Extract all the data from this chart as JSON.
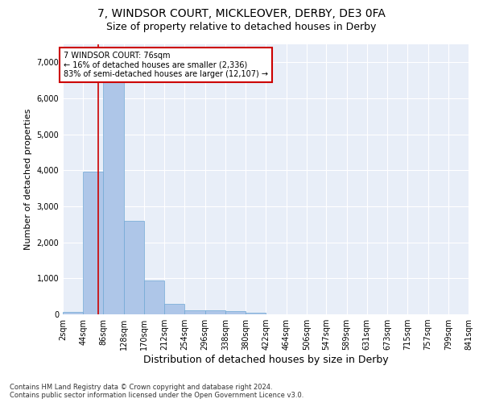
{
  "title": "7, WINDSOR COURT, MICKLEOVER, DERBY, DE3 0FA",
  "subtitle": "Size of property relative to detached houses in Derby",
  "xlabel": "Distribution of detached houses by size in Derby",
  "ylabel": "Number of detached properties",
  "footer_line1": "Contains HM Land Registry data © Crown copyright and database right 2024.",
  "footer_line2": "Contains public sector information licensed under the Open Government Licence v3.0.",
  "annotation_title": "7 WINDSOR COURT: 76sqm",
  "annotation_line2": "← 16% of detached houses are smaller (2,336)",
  "annotation_line3": "83% of semi-detached houses are larger (12,107) →",
  "property_size": 76,
  "bin_edges": [
    2,
    44,
    86,
    128,
    170,
    212,
    254,
    296,
    338,
    380,
    422,
    464,
    506,
    547,
    589,
    631,
    673,
    715,
    757,
    799,
    841
  ],
  "bin_counts": [
    75,
    3960,
    6550,
    2600,
    950,
    300,
    120,
    110,
    80,
    50,
    0,
    0,
    0,
    0,
    0,
    0,
    0,
    0,
    0,
    0
  ],
  "bar_color": "#aec6e8",
  "bar_edge_color": "#6fa8d4",
  "vline_color": "#cc0000",
  "vline_x": 76,
  "annotation_box_color": "#ffffff",
  "annotation_box_edge": "#cc0000",
  "background_color": "#e8eef8",
  "ylim": [
    0,
    7500
  ],
  "yticks": [
    0,
    1000,
    2000,
    3000,
    4000,
    5000,
    6000,
    7000
  ],
  "title_fontsize": 10,
  "subtitle_fontsize": 9,
  "ylabel_fontsize": 8,
  "xlabel_fontsize": 9,
  "tick_fontsize": 7
}
